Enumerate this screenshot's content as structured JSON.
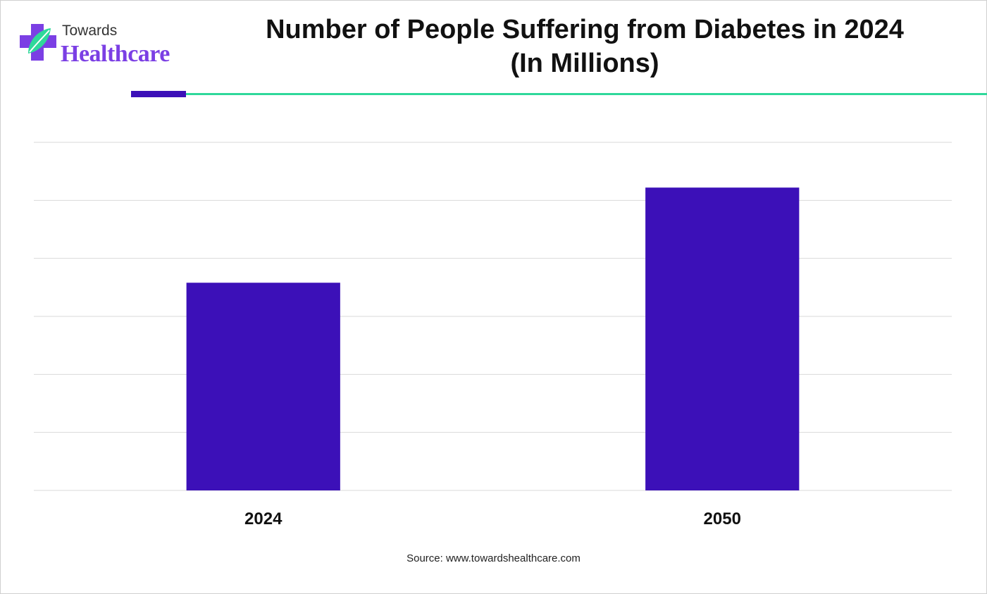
{
  "logo": {
    "line1": "Towards",
    "line2": "Healthcare"
  },
  "title": {
    "line1": "Number of People Suffering from Diabetes in 2024",
    "line2": "(In Millions)"
  },
  "source": "Source: www.towardshealthcare.com",
  "colors": {
    "bar": "#3c10b8",
    "accent": "#2fd89a",
    "grid": "#d9d9d9",
    "logo": "#7b3fe4"
  },
  "chart_data": {
    "type": "bar",
    "title": "Number of People Suffering from Diabetes in 2024 (In Millions)",
    "categories": [
      "2024",
      "2050"
    ],
    "values": [
      537,
      783
    ],
    "xlabel": "",
    "ylabel": "",
    "ylim": [
      0,
      900
    ],
    "gridlines": [
      0,
      150,
      300,
      450,
      600,
      750,
      900
    ],
    "grid": true,
    "legend": "none"
  }
}
